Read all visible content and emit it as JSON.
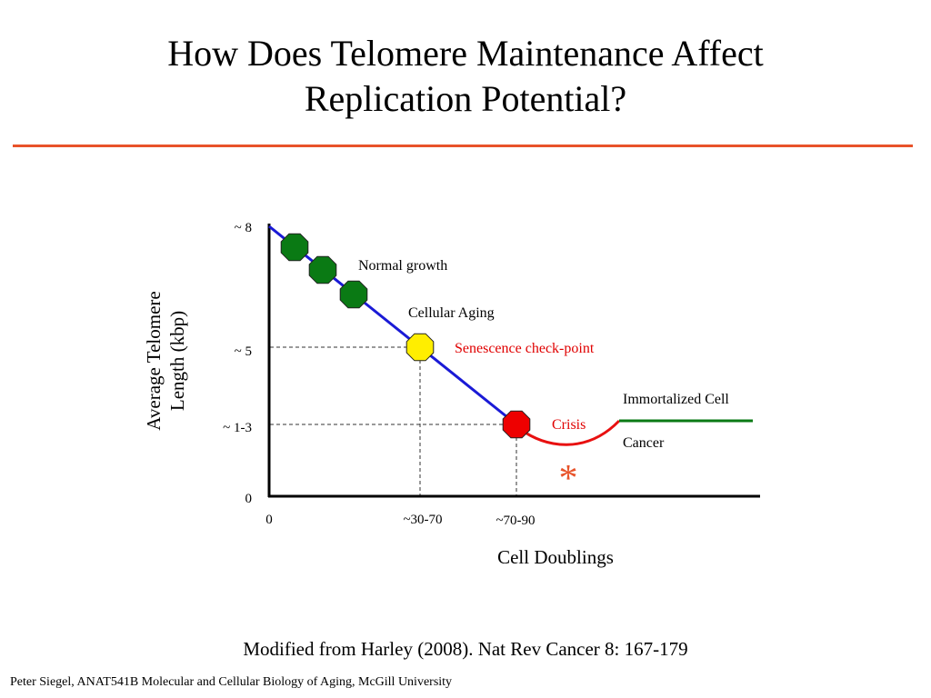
{
  "slide": {
    "title_line1": "How Does Telomere Maintenance Affect",
    "title_line2": "Replication Potential?",
    "citation": "Modified from Harley (2008). Nat Rev Cancer 8: 167-179",
    "footer": "Peter Siegel, ANAT541B Molecular and Cellular Biology of Aging, McGill University",
    "rule_color": "#e8532a"
  },
  "diagram": {
    "y_axis_label_line1": "Average Telomere",
    "y_axis_label_line2": "Length (kbp)",
    "x_axis_label": "Cell Doublings",
    "y_ticks": [
      "~ 8",
      "~ 5",
      "~ 1-3",
      "0"
    ],
    "x_ticks": [
      "0",
      "~30-70",
      "~70-90"
    ],
    "annotations": {
      "normal_growth": "Normal growth",
      "cellular_aging": "Cellular Aging",
      "senescence": "Senescence check-point",
      "crisis": "Crisis",
      "immortalized": "Immortalized Cell",
      "cancer": "Cancer",
      "asterisk": "*"
    },
    "colors": {
      "decline_line": "#1a1ad6",
      "normal_marker": "#0a7a14",
      "senescence_marker": "#ffee00",
      "crisis_marker": "#ee0000",
      "crisis_curve": "#e81010",
      "immortal_line": "#0a7a14",
      "senescence_text": "#e00000",
      "crisis_text": "#e00000",
      "asterisk": "#e8532a"
    },
    "marker_icons": [
      "octagon-icon"
    ]
  }
}
